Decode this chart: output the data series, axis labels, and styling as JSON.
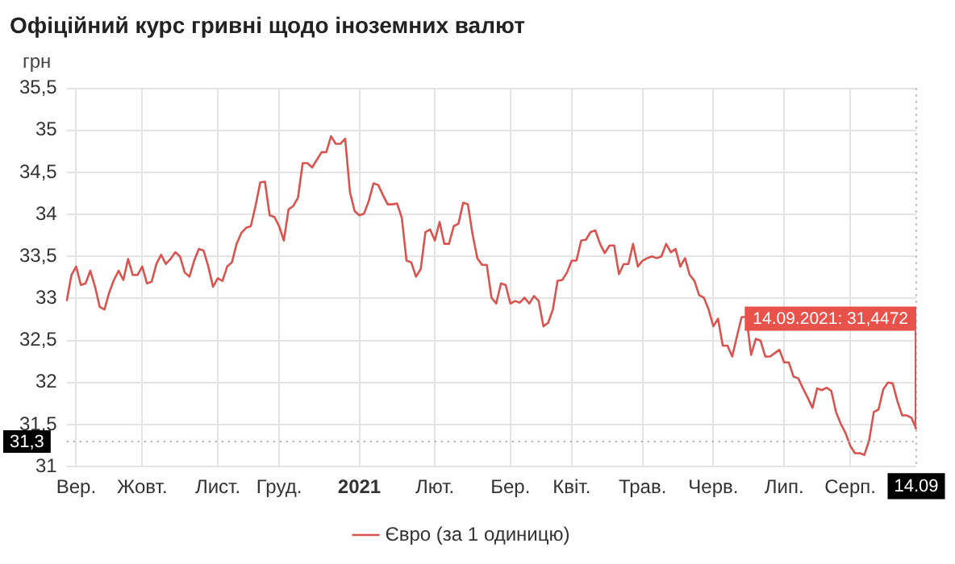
{
  "chart_data": {
    "type": "line",
    "title": "Офіційний курс гривні щодо іноземних валют",
    "ylabel": "грн",
    "categories": [
      null,
      null,
      "Вер.",
      null,
      null,
      null,
      null,
      null,
      null,
      null,
      null,
      null,
      null,
      null,
      null,
      null,
      "Жовт.",
      null,
      null,
      null,
      null,
      null,
      null,
      null,
      null,
      null,
      null,
      null,
      null,
      null,
      null,
      null,
      "Лист.",
      null,
      null,
      null,
      null,
      null,
      null,
      null,
      null,
      null,
      null,
      null,
      null,
      "Груд.",
      null,
      null,
      null,
      null,
      null,
      null,
      null,
      null,
      null,
      null,
      null,
      null,
      null,
      null,
      null,
      null,
      "2021",
      null,
      null,
      null,
      null,
      null,
      null,
      null,
      null,
      null,
      null,
      null,
      null,
      null,
      null,
      null,
      "Лют.",
      null,
      null,
      null,
      null,
      null,
      null,
      null,
      null,
      null,
      null,
      null,
      null,
      null,
      null,
      null,
      "Бер.",
      null,
      null,
      null,
      null,
      null,
      null,
      null,
      null,
      null,
      null,
      null,
      null,
      "Квіт.",
      null,
      null,
      null,
      null,
      null,
      null,
      null,
      null,
      null,
      null,
      null,
      null,
      null,
      null,
      "Трав.",
      null,
      null,
      null,
      null,
      null,
      null,
      null,
      null,
      null,
      null,
      null,
      null,
      null,
      null,
      "Черв.",
      null,
      null,
      null,
      null,
      null,
      null,
      null,
      null,
      null,
      null,
      null,
      null,
      null,
      null,
      "Лип.",
      null,
      null,
      null,
      null,
      null,
      null,
      null,
      null,
      null,
      null,
      null,
      null,
      null,
      "Серп.",
      null,
      null,
      null,
      null,
      null,
      null,
      null,
      null,
      null,
      null,
      null,
      null,
      null,
      "14.09"
    ],
    "series": [
      {
        "name": "Євро (за 1 одиницю)",
        "color": "#d9534f",
        "values": [
          32.97,
          33.28,
          33.38,
          33.16,
          33.18,
          33.33,
          33.14,
          32.9,
          32.87,
          33.07,
          33.22,
          33.33,
          33.22,
          33.47,
          33.28,
          33.28,
          33.38,
          33.18,
          33.2,
          33.41,
          33.52,
          33.41,
          33.47,
          33.55,
          33.5,
          33.31,
          33.26,
          33.45,
          33.59,
          33.57,
          33.38,
          33.14,
          33.24,
          33.21,
          33.38,
          33.43,
          33.65,
          33.78,
          33.84,
          33.86,
          34.1,
          34.38,
          34.39,
          33.99,
          33.97,
          33.86,
          33.69,
          34.06,
          34.1,
          34.2,
          34.61,
          34.61,
          34.56,
          34.65,
          34.74,
          34.74,
          34.93,
          34.84,
          34.84,
          34.9,
          34.27,
          34.04,
          33.99,
          34.01,
          34.16,
          34.37,
          34.35,
          34.23,
          34.12,
          34.12,
          34.13,
          33.96,
          33.45,
          33.43,
          33.26,
          33.35,
          33.79,
          33.82,
          33.69,
          33.91,
          33.65,
          33.65,
          33.86,
          33.89,
          34.14,
          34.12,
          33.76,
          33.48,
          33.4,
          33.4,
          33.01,
          32.94,
          33.18,
          33.16,
          32.94,
          32.97,
          32.95,
          33.01,
          32.94,
          33.03,
          32.97,
          32.67,
          32.71,
          32.87,
          33.21,
          33.22,
          33.31,
          33.45,
          33.45,
          33.69,
          33.7,
          33.79,
          33.81,
          33.65,
          33.54,
          33.63,
          33.63,
          33.29,
          33.41,
          33.41,
          33.65,
          33.38,
          33.45,
          33.48,
          33.5,
          33.48,
          33.5,
          33.65,
          33.55,
          33.59,
          33.38,
          33.48,
          33.28,
          33.21,
          33.04,
          33.01,
          32.87,
          32.67,
          32.76,
          32.44,
          32.44,
          32.31,
          32.55,
          32.78,
          32.78,
          32.33,
          32.52,
          32.5,
          32.31,
          32.31,
          32.35,
          32.39,
          32.24,
          32.24,
          32.07,
          32.05,
          31.93,
          31.82,
          31.7,
          31.93,
          31.91,
          31.94,
          31.9,
          31.65,
          31.51,
          31.4,
          31.25,
          31.16,
          31.16,
          31.14,
          31.31,
          31.65,
          31.68,
          31.92,
          32.0,
          31.99,
          31.78,
          31.61,
          31.61,
          31.58,
          31.4472
        ]
      }
    ],
    "ylim": [
      31,
      35.5
    ],
    "yticks": [
      {
        "value": 31,
        "label": "31"
      },
      {
        "value": 31.5,
        "label": "31,5"
      },
      {
        "value": 32,
        "label": "32"
      },
      {
        "value": 32.5,
        "label": "32,5"
      },
      {
        "value": 33,
        "label": "33"
      },
      {
        "value": 33.5,
        "label": "33,5"
      },
      {
        "value": 34,
        "label": "34"
      },
      {
        "value": 34.5,
        "label": "34,5"
      },
      {
        "value": 35,
        "label": "35"
      },
      {
        "value": 35.5,
        "label": "35,5"
      }
    ],
    "grid": true,
    "legend": "bottom",
    "marker": "none",
    "ref_lines": [
      {
        "axis": "y",
        "value": 31.3,
        "label": "31,3",
        "line_style": "dotted",
        "color": "#aaaaaa"
      },
      {
        "axis": "x",
        "value": "14.09",
        "line_style": "dotted",
        "color": "#aaaaaa"
      }
    ],
    "annotations": [
      {
        "text": "14.09.2021: 31,4472",
        "x": "14.09",
        "y": 31.4472
      }
    ]
  }
}
